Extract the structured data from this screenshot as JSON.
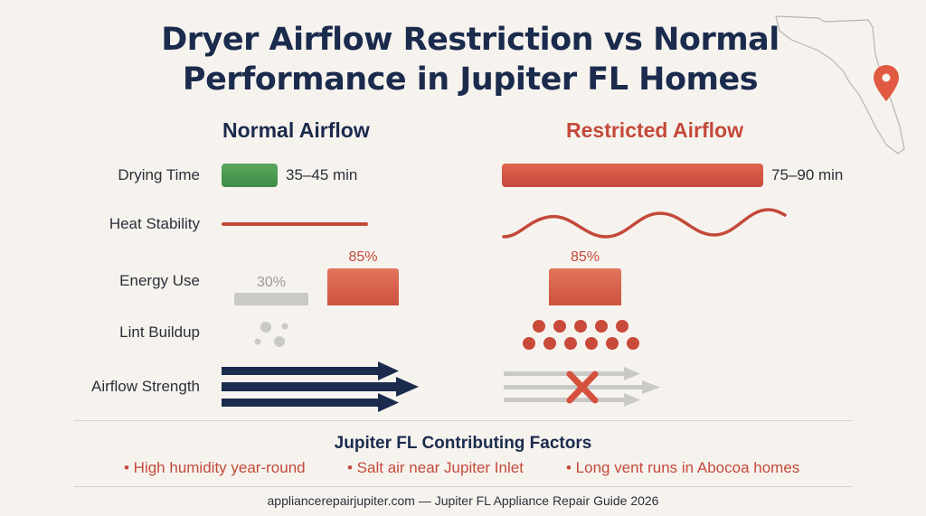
{
  "title_line1": "Dryer Airflow Restriction vs Normal",
  "title_line2": "Performance in Jupiter FL Homes",
  "columns": {
    "normal": "Normal Airflow",
    "restricted": "Restricted Airflow"
  },
  "rows": {
    "drying_time": "Drying Time",
    "heat_stability": "Heat Stability",
    "energy_use": "Energy Use",
    "lint_buildup": "Lint Buildup",
    "airflow_strength": "Airflow Strength"
  },
  "values": {
    "drying_normal": "35–45 min",
    "drying_restricted": "75–90 min",
    "energy_normal_low": "30%",
    "energy_normal_high": "85%",
    "energy_restricted": "85%"
  },
  "factors": {
    "title": "Jupiter FL Contributing Factors",
    "items": [
      "• High humidity year-round",
      "• Salt air near Jupiter Inlet",
      "• Long vent runs in Abocoa homes"
    ]
  },
  "footer": "appliancerepairjupiter.com — Jupiter FL Appliance Repair Guide 2026",
  "colors": {
    "navy": "#1b2b4d",
    "red": "#c4493a",
    "green": "#4a9a52",
    "gray": "#c9c9c6",
    "background": "#f6f3ee"
  },
  "icons": [
    "florida-map-icon",
    "location-pin-icon",
    "blocked-x-icon"
  ]
}
